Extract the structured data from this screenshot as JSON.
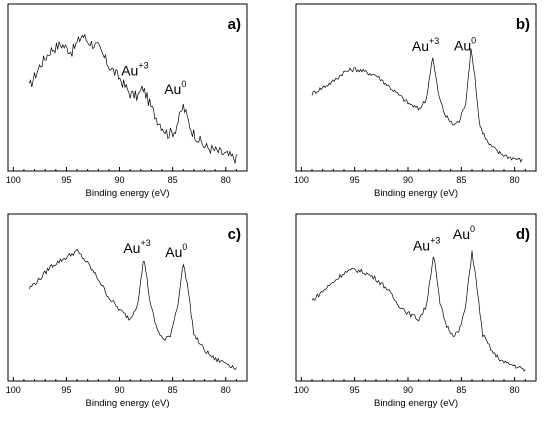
{
  "chart_data": [
    {
      "type": "line",
      "panel_label": "a)",
      "xlabel": "Binding energy (eV)",
      "xticks": [
        100,
        95,
        90,
        85,
        80
      ],
      "xlim": [
        100.5,
        78
      ],
      "y_axis_labels": "none",
      "annotations": [
        {
          "base": "Au",
          "sup": "+3",
          "x": 87.8
        },
        {
          "base": "Au",
          "sup": "0",
          "x": 84.0
        }
      ],
      "series": [
        {
          "x": [
            98.5,
            97.5,
            96.5,
            95.5,
            94.5,
            93.5,
            93.0,
            92.0,
            91.0,
            90.0,
            89.0,
            88.3,
            87.8,
            87.2,
            86.5,
            85.5,
            84.8,
            84.0,
            83.2,
            82.0,
            80.5,
            79.0
          ],
          "y": [
            0.5,
            0.64,
            0.74,
            0.78,
            0.73,
            0.84,
            0.8,
            0.76,
            0.64,
            0.56,
            0.46,
            0.44,
            0.5,
            0.4,
            0.3,
            0.2,
            0.22,
            0.38,
            0.22,
            0.12,
            0.08,
            0.04
          ]
        }
      ]
    },
    {
      "type": "line",
      "panel_label": "b)",
      "xlabel": "Binding energy (eV)",
      "xticks": [
        100,
        95,
        90,
        85,
        80
      ],
      "xlim": [
        100.5,
        78
      ],
      "y_axis_labels": "none",
      "annotations": [
        {
          "base": "Au",
          "sup": "+3",
          "x": 87.6
        },
        {
          "base": "Au",
          "sup": "0",
          "x": 83.9
        }
      ],
      "series": [
        {
          "x": [
            99.0,
            98.0,
            97.0,
            96.0,
            95.0,
            94.0,
            93.0,
            92.0,
            91.0,
            90.0,
            89.0,
            88.3,
            87.7,
            87.1,
            86.5,
            85.8,
            85.2,
            84.6,
            84.1,
            83.8,
            83.3,
            82.5,
            81.5,
            80.5,
            79.3
          ],
          "y": [
            0.46,
            0.5,
            0.54,
            0.6,
            0.62,
            0.6,
            0.58,
            0.52,
            0.46,
            0.4,
            0.36,
            0.42,
            0.7,
            0.44,
            0.32,
            0.26,
            0.28,
            0.4,
            0.74,
            0.62,
            0.26,
            0.14,
            0.08,
            0.05,
            0.03
          ]
        }
      ]
    },
    {
      "type": "line",
      "panel_label": "c)",
      "xlabel": "Binding energy (eV)",
      "xticks": [
        100,
        95,
        90,
        85,
        80
      ],
      "xlim": [
        100.5,
        78
      ],
      "y_axis_labels": "none",
      "annotations": [
        {
          "base": "Au",
          "sup": "+3",
          "x": 87.6
        },
        {
          "base": "Au",
          "sup": "0",
          "x": 83.9
        }
      ],
      "series": [
        {
          "x": [
            98.5,
            97.5,
            96.5,
            95.5,
            94.5,
            94.0,
            93.0,
            92.0,
            91.0,
            90.0,
            89.0,
            88.3,
            87.7,
            87.1,
            86.5,
            85.8,
            85.2,
            84.5,
            84.0,
            83.6,
            83.0,
            82.0,
            81.0,
            80.0,
            79.0
          ],
          "y": [
            0.56,
            0.62,
            0.7,
            0.74,
            0.78,
            0.8,
            0.72,
            0.62,
            0.5,
            0.42,
            0.36,
            0.46,
            0.76,
            0.46,
            0.3,
            0.22,
            0.26,
            0.46,
            0.72,
            0.58,
            0.26,
            0.16,
            0.1,
            0.08,
            0.04
          ]
        }
      ]
    },
    {
      "type": "line",
      "panel_label": "d)",
      "xlabel": "Binding energy (eV)",
      "xticks": [
        100,
        95,
        90,
        85,
        80
      ],
      "xlim": [
        100.5,
        78
      ],
      "y_axis_labels": "none",
      "annotations": [
        {
          "base": "Au",
          "sup": "+3",
          "x": 87.5
        },
        {
          "base": "Au",
          "sup": "0",
          "x": 84.0
        }
      ],
      "series": [
        {
          "x": [
            99.0,
            98.0,
            97.0,
            96.0,
            95.0,
            94.0,
            93.0,
            92.0,
            91.0,
            90.0,
            89.0,
            88.3,
            87.6,
            87.0,
            86.4,
            85.8,
            85.2,
            84.6,
            84.0,
            83.6,
            83.0,
            82.0,
            81.0,
            80.0,
            79.0
          ],
          "y": [
            0.48,
            0.54,
            0.6,
            0.66,
            0.68,
            0.66,
            0.62,
            0.56,
            0.46,
            0.4,
            0.36,
            0.44,
            0.78,
            0.46,
            0.32,
            0.26,
            0.28,
            0.44,
            0.8,
            0.6,
            0.26,
            0.14,
            0.08,
            0.06,
            0.03
          ]
        }
      ]
    }
  ]
}
